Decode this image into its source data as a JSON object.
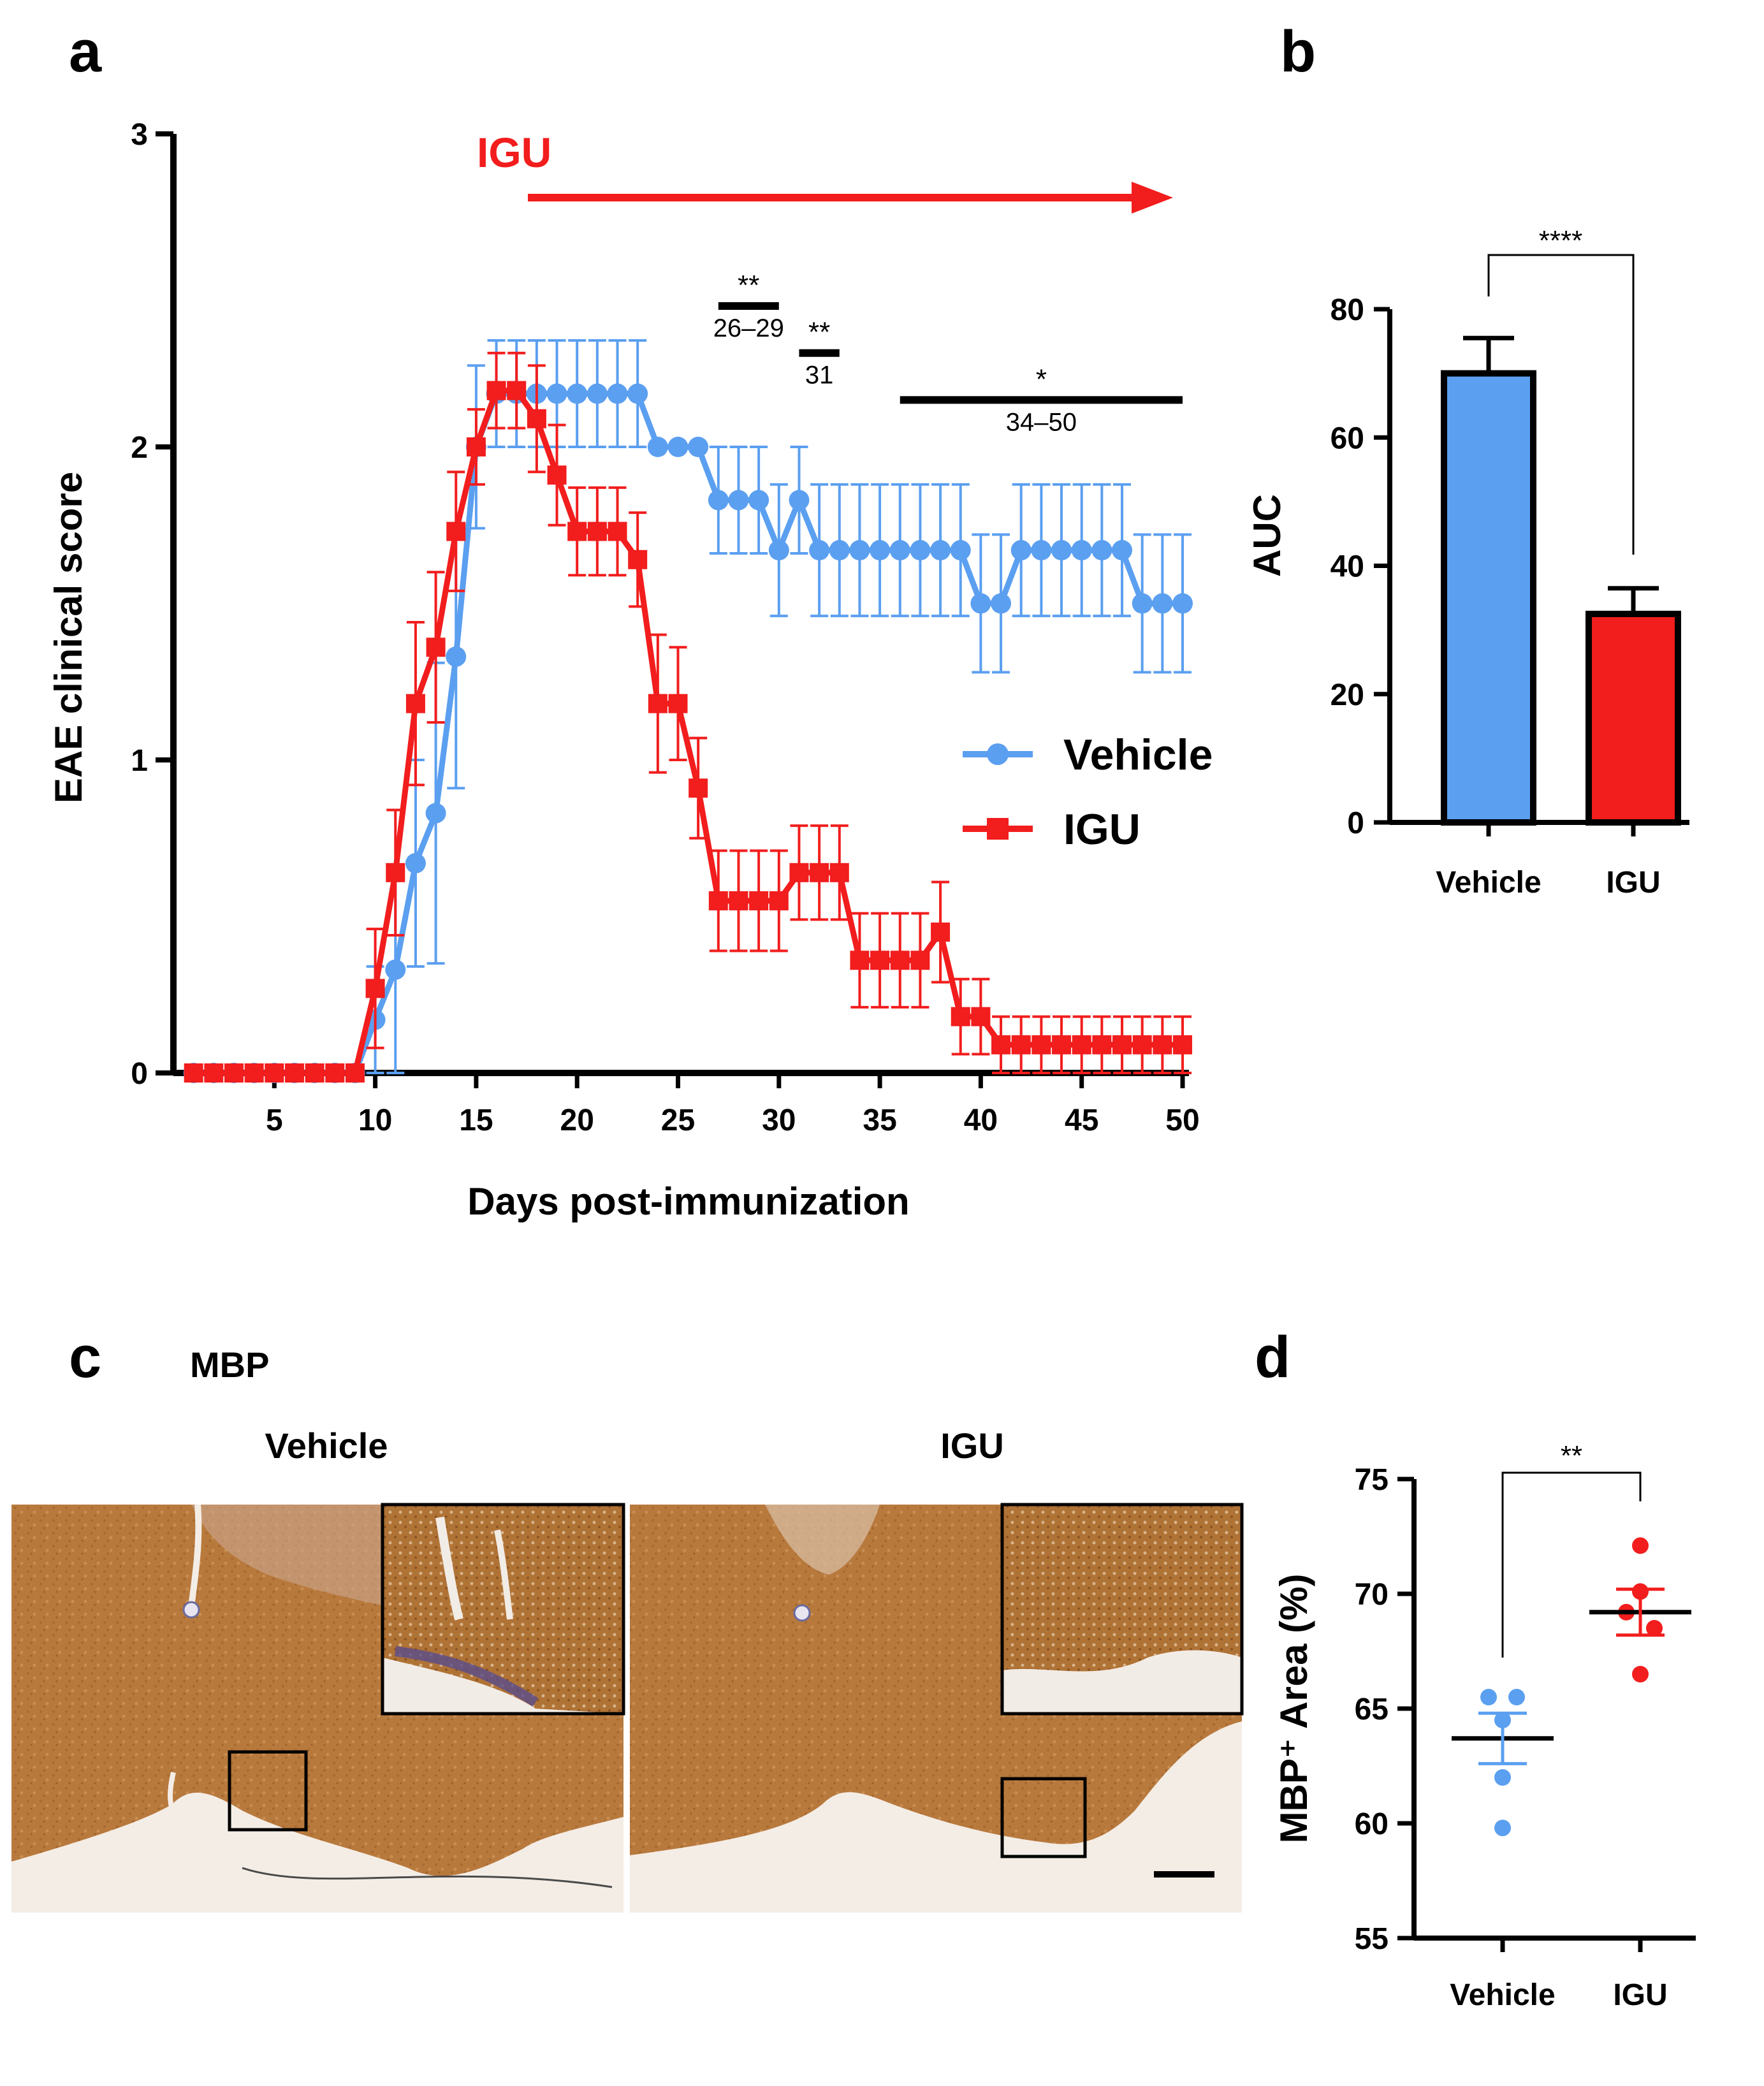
{
  "panels": {
    "a": "a",
    "b": "b",
    "c": "c",
    "d": "d"
  },
  "colors": {
    "vehicle": "#5b9ff0",
    "igu": "#f21d1d",
    "axis": "#000000",
    "tissue": "#b87a3c"
  },
  "chart_data": [
    {
      "id": "a",
      "type": "line",
      "title": "",
      "xlabel": "Days post-immunization",
      "ylabel": "EAE clinical score",
      "xlim": [
        0,
        50
      ],
      "ylim": [
        0,
        3
      ],
      "xticks": [
        "5",
        "10",
        "15",
        "20",
        "25",
        "30",
        "35",
        "40",
        "45",
        "50"
      ],
      "yticks": [
        "0",
        "1",
        "2",
        "3"
      ],
      "treatment_label": "IGU",
      "treatment_start_day": 17,
      "legend": [
        "Vehicle",
        "IGU"
      ],
      "series": [
        {
          "name": "Vehicle",
          "marker": "circle",
          "x": [
            1,
            2,
            3,
            4,
            5,
            6,
            7,
            8,
            9,
            10,
            11,
            12,
            13,
            14,
            15,
            16,
            17,
            18,
            19,
            20,
            21,
            22,
            23,
            24,
            25,
            26,
            27,
            28,
            29,
            30,
            31,
            32,
            33,
            34,
            35,
            36,
            37,
            38,
            39,
            40,
            41,
            42,
            43,
            44,
            45,
            46,
            47,
            48,
            49,
            50
          ],
          "y": [
            0,
            0,
            0,
            0,
            0,
            0,
            0,
            0,
            0,
            0.17,
            0.33,
            0.67,
            0.83,
            1.33,
            2.0,
            2.17,
            2.17,
            2.17,
            2.17,
            2.17,
            2.17,
            2.17,
            2.17,
            2.0,
            2.0,
            2.0,
            1.83,
            1.83,
            1.83,
            1.67,
            1.83,
            1.67,
            1.67,
            1.67,
            1.67,
            1.67,
            1.67,
            1.67,
            1.67,
            1.5,
            1.5,
            1.67,
            1.67,
            1.67,
            1.67,
            1.67,
            1.67,
            1.5,
            1.5,
            1.5
          ],
          "err": [
            0,
            0,
            0,
            0,
            0,
            0,
            0,
            0,
            0,
            0.17,
            0.33,
            0.33,
            0.48,
            0.42,
            0.26,
            0.17,
            0.17,
            0.17,
            0.17,
            0.17,
            0.17,
            0.17,
            0.17,
            0,
            0,
            0,
            0.17,
            0.17,
            0.17,
            0.21,
            0.17,
            0.21,
            0.21,
            0.21,
            0.21,
            0.21,
            0.21,
            0.21,
            0.21,
            0.22,
            0.22,
            0.21,
            0.21,
            0.21,
            0.21,
            0.21,
            0.21,
            0.22,
            0.22,
            0.22
          ]
        },
        {
          "name": "IGU",
          "marker": "square",
          "x": [
            1,
            2,
            3,
            4,
            5,
            6,
            7,
            8,
            9,
            10,
            11,
            12,
            13,
            14,
            15,
            16,
            17,
            18,
            19,
            20,
            21,
            22,
            23,
            24,
            25,
            26,
            27,
            28,
            29,
            30,
            31,
            32,
            33,
            34,
            35,
            36,
            37,
            38,
            39,
            40,
            41,
            42,
            43,
            44,
            45,
            46,
            47,
            48,
            49,
            50
          ],
          "y": [
            0,
            0,
            0,
            0,
            0,
            0,
            0,
            0,
            0,
            0.27,
            0.64,
            1.18,
            1.36,
            1.73,
            2.0,
            2.18,
            2.18,
            2.09,
            1.91,
            1.73,
            1.73,
            1.73,
            1.64,
            1.18,
            1.18,
            0.91,
            0.55,
            0.55,
            0.55,
            0.55,
            0.64,
            0.64,
            0.64,
            0.36,
            0.36,
            0.36,
            0.36,
            0.45,
            0.18,
            0.18,
            0.09,
            0.09,
            0.09,
            0.09,
            0.09,
            0.09,
            0.09,
            0.09,
            0.09,
            0.09
          ],
          "err": [
            0,
            0,
            0,
            0,
            0,
            0,
            0,
            0,
            0,
            0.19,
            0.2,
            0.26,
            0.24,
            0.19,
            0.12,
            0.12,
            0.12,
            0.17,
            0.16,
            0.14,
            0.14,
            0.14,
            0.15,
            0.22,
            0.18,
            0.16,
            0.16,
            0.16,
            0.16,
            0.16,
            0.15,
            0.15,
            0.15,
            0.15,
            0.15,
            0.15,
            0.15,
            0.16,
            0.12,
            0.12,
            0.09,
            0.09,
            0.09,
            0.09,
            0.09,
            0.09,
            0.09,
            0.09,
            0.09,
            0.09
          ]
        }
      ],
      "annotations": [
        {
          "stars": "**",
          "range": "26–29",
          "x_start": 27,
          "x_end": 30,
          "y": 2.45
        },
        {
          "stars": "**",
          "range": "31",
          "x_start": 31,
          "x_end": 33,
          "y": 2.3
        },
        {
          "stars": "*",
          "range": "34–50",
          "x_start": 36,
          "x_end": 50,
          "y": 2.15
        }
      ]
    },
    {
      "id": "b",
      "type": "bar",
      "categories": [
        "Vehicle",
        "IGU"
      ],
      "values": [
        70,
        32.5
      ],
      "errors": [
        5.5,
        4
      ],
      "ylabel": "AUC",
      "ylim": [
        0,
        80
      ],
      "yticks": [
        "0",
        "20",
        "40",
        "60",
        "80"
      ],
      "significance": "****"
    },
    {
      "id": "d",
      "type": "scatter",
      "categories": [
        "Vehicle",
        "IGU"
      ],
      "ylabel": "MBP⁺ Area (%)",
      "ylim": [
        55,
        75
      ],
      "yticks": [
        "55",
        "60",
        "65",
        "70",
        "75"
      ],
      "significance": "**",
      "series": [
        {
          "name": "Vehicle",
          "points": [
            65.5,
            65.5,
            64.5,
            62.0,
            59.8
          ],
          "mean": 63.7,
          "sem": 1.1
        },
        {
          "name": "IGU",
          "points": [
            72.1,
            70.1,
            69.2,
            68.5,
            66.5
          ],
          "mean": 69.2,
          "sem": 1.0
        }
      ]
    }
  ],
  "micrographs": {
    "stain": "MBP",
    "vehicle_title": "Vehicle",
    "igu_title": "IGU"
  }
}
